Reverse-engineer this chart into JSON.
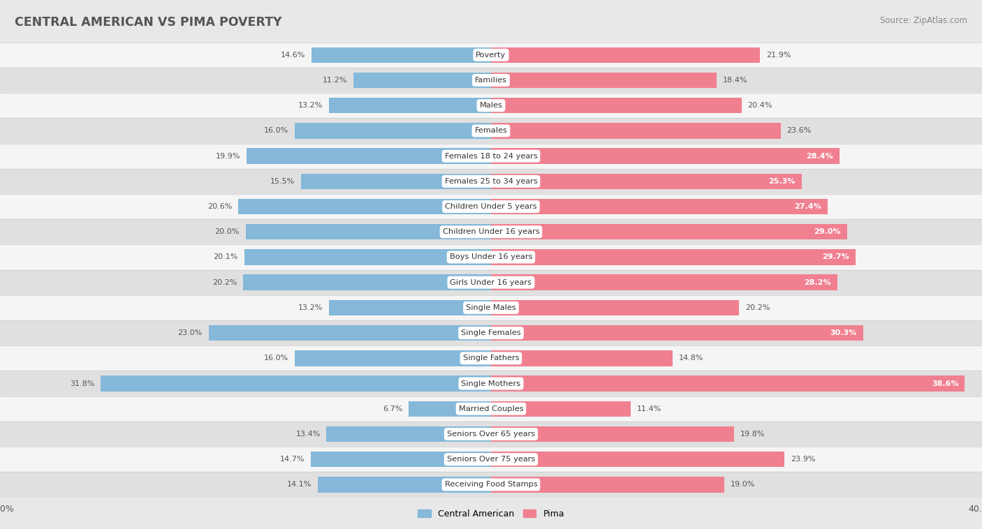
{
  "title": "CENTRAL AMERICAN VS PIMA POVERTY",
  "source": "Source: ZipAtlas.com",
  "categories": [
    "Poverty",
    "Families",
    "Males",
    "Females",
    "Females 18 to 24 years",
    "Females 25 to 34 years",
    "Children Under 5 years",
    "Children Under 16 years",
    "Boys Under 16 years",
    "Girls Under 16 years",
    "Single Males",
    "Single Females",
    "Single Fathers",
    "Single Mothers",
    "Married Couples",
    "Seniors Over 65 years",
    "Seniors Over 75 years",
    "Receiving Food Stamps"
  ],
  "central_american": [
    14.6,
    11.2,
    13.2,
    16.0,
    19.9,
    15.5,
    20.6,
    20.0,
    20.1,
    20.2,
    13.2,
    23.0,
    16.0,
    31.8,
    6.7,
    13.4,
    14.7,
    14.1
  ],
  "pima": [
    21.9,
    18.4,
    20.4,
    23.6,
    28.4,
    25.3,
    27.4,
    29.0,
    29.7,
    28.2,
    20.2,
    30.3,
    14.8,
    38.6,
    11.4,
    19.8,
    23.9,
    19.0
  ],
  "xlim": 40.0,
  "color_central": "#85b8d9",
  "color_pima": "#f08090",
  "bar_height": 0.62,
  "bg_color": "#e8e8e8",
  "row_bg_light": "#f5f5f5",
  "row_bg_dark": "#e0e0e0",
  "title_color": "#555555",
  "source_color": "#888888",
  "label_color_dark": "#555555",
  "label_color_light": "#ffffff"
}
